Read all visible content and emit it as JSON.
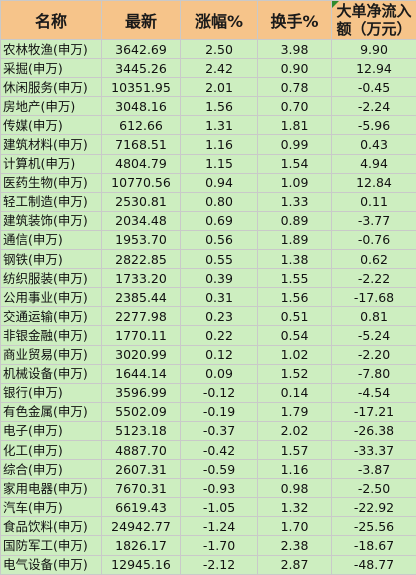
{
  "table": {
    "headers": {
      "name": "名称",
      "price": "最新",
      "change": "涨幅%",
      "turnover": "换手%",
      "net_inflow": "大单净流入额（万元）"
    },
    "rows": [
      {
        "name": "农林牧渔(申万)",
        "price": "3642.69",
        "change": "2.50",
        "turnover": "3.98",
        "net_inflow": "9.90"
      },
      {
        "name": "采掘(申万)",
        "price": "3445.26",
        "change": "2.42",
        "turnover": "0.90",
        "net_inflow": "12.94"
      },
      {
        "name": "休闲服务(申万)",
        "price": "10351.95",
        "change": "2.01",
        "turnover": "0.78",
        "net_inflow": "-0.45"
      },
      {
        "name": "房地产(申万)",
        "price": "3048.16",
        "change": "1.56",
        "turnover": "0.70",
        "net_inflow": "-2.24"
      },
      {
        "name": "传媒(申万)",
        "price": "612.66",
        "change": "1.31",
        "turnover": "1.81",
        "net_inflow": "-5.96"
      },
      {
        "name": "建筑材料(申万)",
        "price": "7168.51",
        "change": "1.16",
        "turnover": "0.99",
        "net_inflow": "0.43"
      },
      {
        "name": "计算机(申万)",
        "price": "4804.79",
        "change": "1.15",
        "turnover": "1.54",
        "net_inflow": "4.94"
      },
      {
        "name": "医药生物(申万)",
        "price": "10770.56",
        "change": "0.94",
        "turnover": "1.09",
        "net_inflow": "12.84"
      },
      {
        "name": "轻工制造(申万)",
        "price": "2530.81",
        "change": "0.80",
        "turnover": "1.33",
        "net_inflow": "0.11"
      },
      {
        "name": "建筑装饰(申万)",
        "price": "2034.48",
        "change": "0.69",
        "turnover": "0.89",
        "net_inflow": "-3.77"
      },
      {
        "name": "通信(申万)",
        "price": "1953.70",
        "change": "0.56",
        "turnover": "1.89",
        "net_inflow": "-0.76"
      },
      {
        "name": "钢铁(申万)",
        "price": "2822.85",
        "change": "0.55",
        "turnover": "1.38",
        "net_inflow": "0.62"
      },
      {
        "name": "纺织服装(申万)",
        "price": "1733.20",
        "change": "0.39",
        "turnover": "1.55",
        "net_inflow": "-2.22"
      },
      {
        "name": "公用事业(申万)",
        "price": "2385.44",
        "change": "0.31",
        "turnover": "1.56",
        "net_inflow": "-17.68"
      },
      {
        "name": "交通运输(申万)",
        "price": "2277.98",
        "change": "0.23",
        "turnover": "0.51",
        "net_inflow": "0.81"
      },
      {
        "name": "非银金融(申万)",
        "price": "1770.11",
        "change": "0.22",
        "turnover": "0.54",
        "net_inflow": "-5.24"
      },
      {
        "name": "商业贸易(申万)",
        "price": "3020.99",
        "change": "0.12",
        "turnover": "1.02",
        "net_inflow": "-2.20"
      },
      {
        "name": "机械设备(申万)",
        "price": "1644.14",
        "change": "0.09",
        "turnover": "1.52",
        "net_inflow": "-7.80"
      },
      {
        "name": "银行(申万)",
        "price": "3596.99",
        "change": "-0.12",
        "turnover": "0.14",
        "net_inflow": "-4.54"
      },
      {
        "name": "有色金属(申万)",
        "price": "5502.09",
        "change": "-0.19",
        "turnover": "1.79",
        "net_inflow": "-17.21"
      },
      {
        "name": "电子(申万)",
        "price": "5123.18",
        "change": "-0.37",
        "turnover": "2.02",
        "net_inflow": "-26.38"
      },
      {
        "name": "化工(申万)",
        "price": "4887.70",
        "change": "-0.42",
        "turnover": "1.57",
        "net_inflow": "-33.37"
      },
      {
        "name": "综合(申万)",
        "price": "2607.31",
        "change": "-0.59",
        "turnover": "1.16",
        "net_inflow": "-3.87"
      },
      {
        "name": "家用电器(申万)",
        "price": "7670.31",
        "change": "-0.93",
        "turnover": "0.98",
        "net_inflow": "-2.50"
      },
      {
        "name": "汽车(申万)",
        "price": "6619.43",
        "change": "-1.05",
        "turnover": "1.32",
        "net_inflow": "-22.92"
      },
      {
        "name": "食品饮料(申万)",
        "price": "24942.77",
        "change": "-1.24",
        "turnover": "1.70",
        "net_inflow": "-25.56"
      },
      {
        "name": "国防军工(申万)",
        "price": "1826.17",
        "change": "-1.70",
        "turnover": "2.38",
        "net_inflow": "-18.67"
      },
      {
        "name": "电气设备(申万)",
        "price": "12945.16",
        "change": "-2.12",
        "turnover": "2.87",
        "net_inflow": "-48.77"
      }
    ]
  },
  "colors": {
    "header_bg": "#f6c48a",
    "row_bg": "#cdeec0",
    "grid_line": "#c9c9c9",
    "corner_marker": "#2e8b2e"
  }
}
